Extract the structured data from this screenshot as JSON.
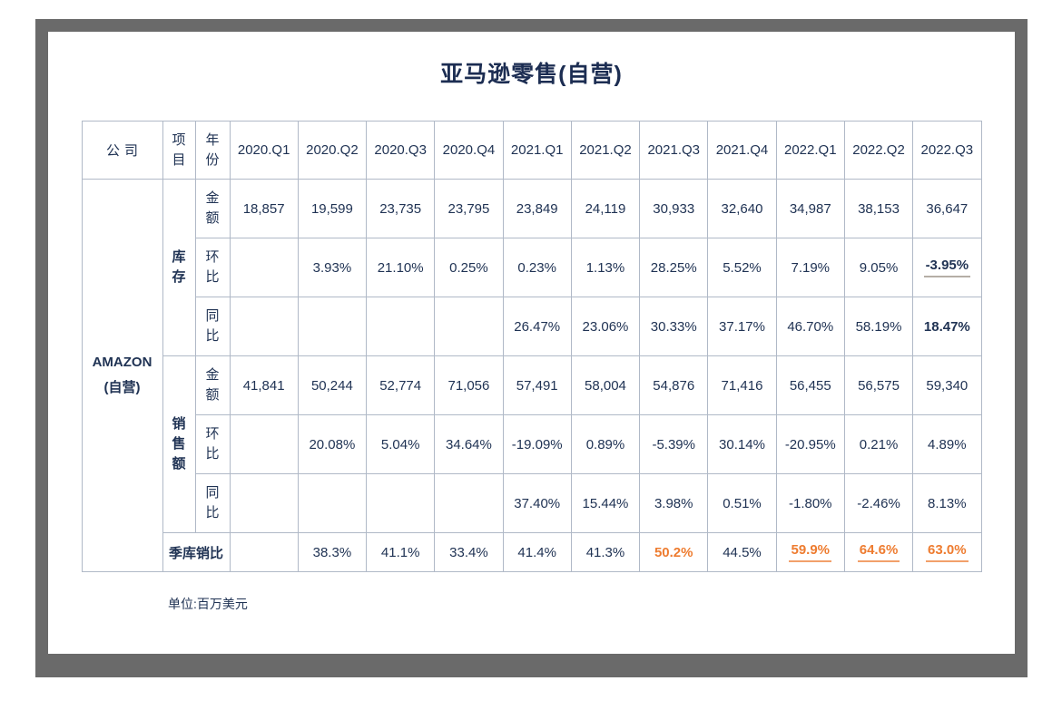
{
  "page": {
    "title": "亚马逊零售(自营)",
    "footnote": "单位:百万美元"
  },
  "table": {
    "header": {
      "company": "公司",
      "item": "项目",
      "year": "年份",
      "quarters": [
        "2020.Q1",
        "2020.Q2",
        "2020.Q3",
        "2020.Q4",
        "2021.Q1",
        "2021.Q2",
        "2021.Q3",
        "2021.Q4",
        "2022.Q1",
        "2022.Q2",
        "2022.Q3"
      ]
    },
    "company": {
      "name": "AMAZON",
      "sub": "(自营)"
    },
    "sections": [
      {
        "id": "inventory",
        "name": "库存",
        "rows": [
          {
            "id": "amount",
            "metric": "金额",
            "values": [
              "18,857",
              "19,599",
              "23,735",
              "23,795",
              "23,849",
              "24,119",
              "30,933",
              "32,640",
              "34,987",
              "38,153",
              "36,647"
            ],
            "styles": {}
          },
          {
            "id": "qoq",
            "metric": "环比",
            "values": [
              "",
              "3.93%",
              "21.10%",
              "0.25%",
              "0.23%",
              "1.13%",
              "28.25%",
              "5.52%",
              "7.19%",
              "9.05%",
              "-3.95%"
            ],
            "styles": {
              "10": [
                "bold",
                "u-gray"
              ]
            }
          },
          {
            "id": "yoy",
            "metric": "同比",
            "values": [
              "",
              "",
              "",
              "",
              "26.47%",
              "23.06%",
              "30.33%",
              "37.17%",
              "46.70%",
              "58.19%",
              "18.47%"
            ],
            "styles": {
              "10": [
                "bold"
              ]
            }
          }
        ]
      },
      {
        "id": "sales",
        "name": "销售额",
        "rows": [
          {
            "id": "amount",
            "metric": "金额",
            "values": [
              "41,841",
              "50,244",
              "52,774",
              "71,056",
              "57,491",
              "58,004",
              "54,876",
              "71,416",
              "56,455",
              "56,575",
              "59,340"
            ],
            "styles": {}
          },
          {
            "id": "qoq",
            "metric": "环比",
            "values": [
              "",
              "20.08%",
              "5.04%",
              "34.64%",
              "-19.09%",
              "0.89%",
              "-5.39%",
              "30.14%",
              "-20.95%",
              "0.21%",
              "4.89%"
            ],
            "styles": {}
          },
          {
            "id": "yoy",
            "metric": "同比",
            "values": [
              "",
              "",
              "",
              "",
              "37.40%",
              "15.44%",
              "3.98%",
              "0.51%",
              "-1.80%",
              "-2.46%",
              "8.13%"
            ],
            "styles": {}
          }
        ]
      }
    ],
    "ratio_row": {
      "id": "inventory-sales-ratio",
      "label": "季库销比",
      "values": [
        "",
        "38.3%",
        "41.1%",
        "33.4%",
        "41.4%",
        "41.3%",
        "50.2%",
        "44.5%",
        "59.9%",
        "64.6%",
        "63.0%"
      ],
      "styles": {
        "6": [
          "orange",
          "bold"
        ],
        "8": [
          "orange",
          "bold",
          "u-orange"
        ],
        "9": [
          "orange",
          "bold",
          "u-orange"
        ],
        "10": [
          "orange",
          "bold",
          "u-orange"
        ]
      }
    }
  },
  "colors": {
    "text_navy": "#203354",
    "accent_orange": "#ee7c30",
    "table_border": "#b0b9c7",
    "frame_gray": "#6a6a6a",
    "underline_gray": "#b5aea6",
    "underline_orange": "#f2a06b"
  },
  "chart_data": {
    "type": "table",
    "title": "亚马逊零售(自营)",
    "unit": "单位:百万美元",
    "columns": [
      "2020.Q1",
      "2020.Q2",
      "2020.Q3",
      "2020.Q4",
      "2021.Q1",
      "2021.Q2",
      "2021.Q3",
      "2021.Q4",
      "2022.Q1",
      "2022.Q2",
      "2022.Q3"
    ],
    "company": "AMAZON(自营)",
    "rows": [
      {
        "group": "库存",
        "metric": "金额",
        "values": [
          18857,
          19599,
          23735,
          23795,
          23849,
          24119,
          30933,
          32640,
          34987,
          38153,
          36647
        ]
      },
      {
        "group": "库存",
        "metric": "环比(%)",
        "values": [
          null,
          3.93,
          21.1,
          0.25,
          0.23,
          1.13,
          28.25,
          5.52,
          7.19,
          9.05,
          -3.95
        ]
      },
      {
        "group": "库存",
        "metric": "同比(%)",
        "values": [
          null,
          null,
          null,
          null,
          26.47,
          23.06,
          30.33,
          37.17,
          46.7,
          58.19,
          18.47
        ]
      },
      {
        "group": "销售额",
        "metric": "金额",
        "values": [
          41841,
          50244,
          52774,
          71056,
          57491,
          58004,
          54876,
          71416,
          56455,
          56575,
          59340
        ]
      },
      {
        "group": "销售额",
        "metric": "环比(%)",
        "values": [
          null,
          20.08,
          5.04,
          34.64,
          -19.09,
          0.89,
          -5.39,
          30.14,
          -20.95,
          0.21,
          4.89
        ]
      },
      {
        "group": "销售额",
        "metric": "同比(%)",
        "values": [
          null,
          null,
          null,
          null,
          37.4,
          15.44,
          3.98,
          0.51,
          -1.8,
          -2.46,
          8.13
        ]
      },
      {
        "group": "季库销比",
        "metric": "季库销比(%)",
        "values": [
          null,
          38.3,
          41.1,
          33.4,
          41.4,
          41.3,
          50.2,
          44.5,
          59.9,
          64.6,
          63.0
        ]
      }
    ]
  }
}
